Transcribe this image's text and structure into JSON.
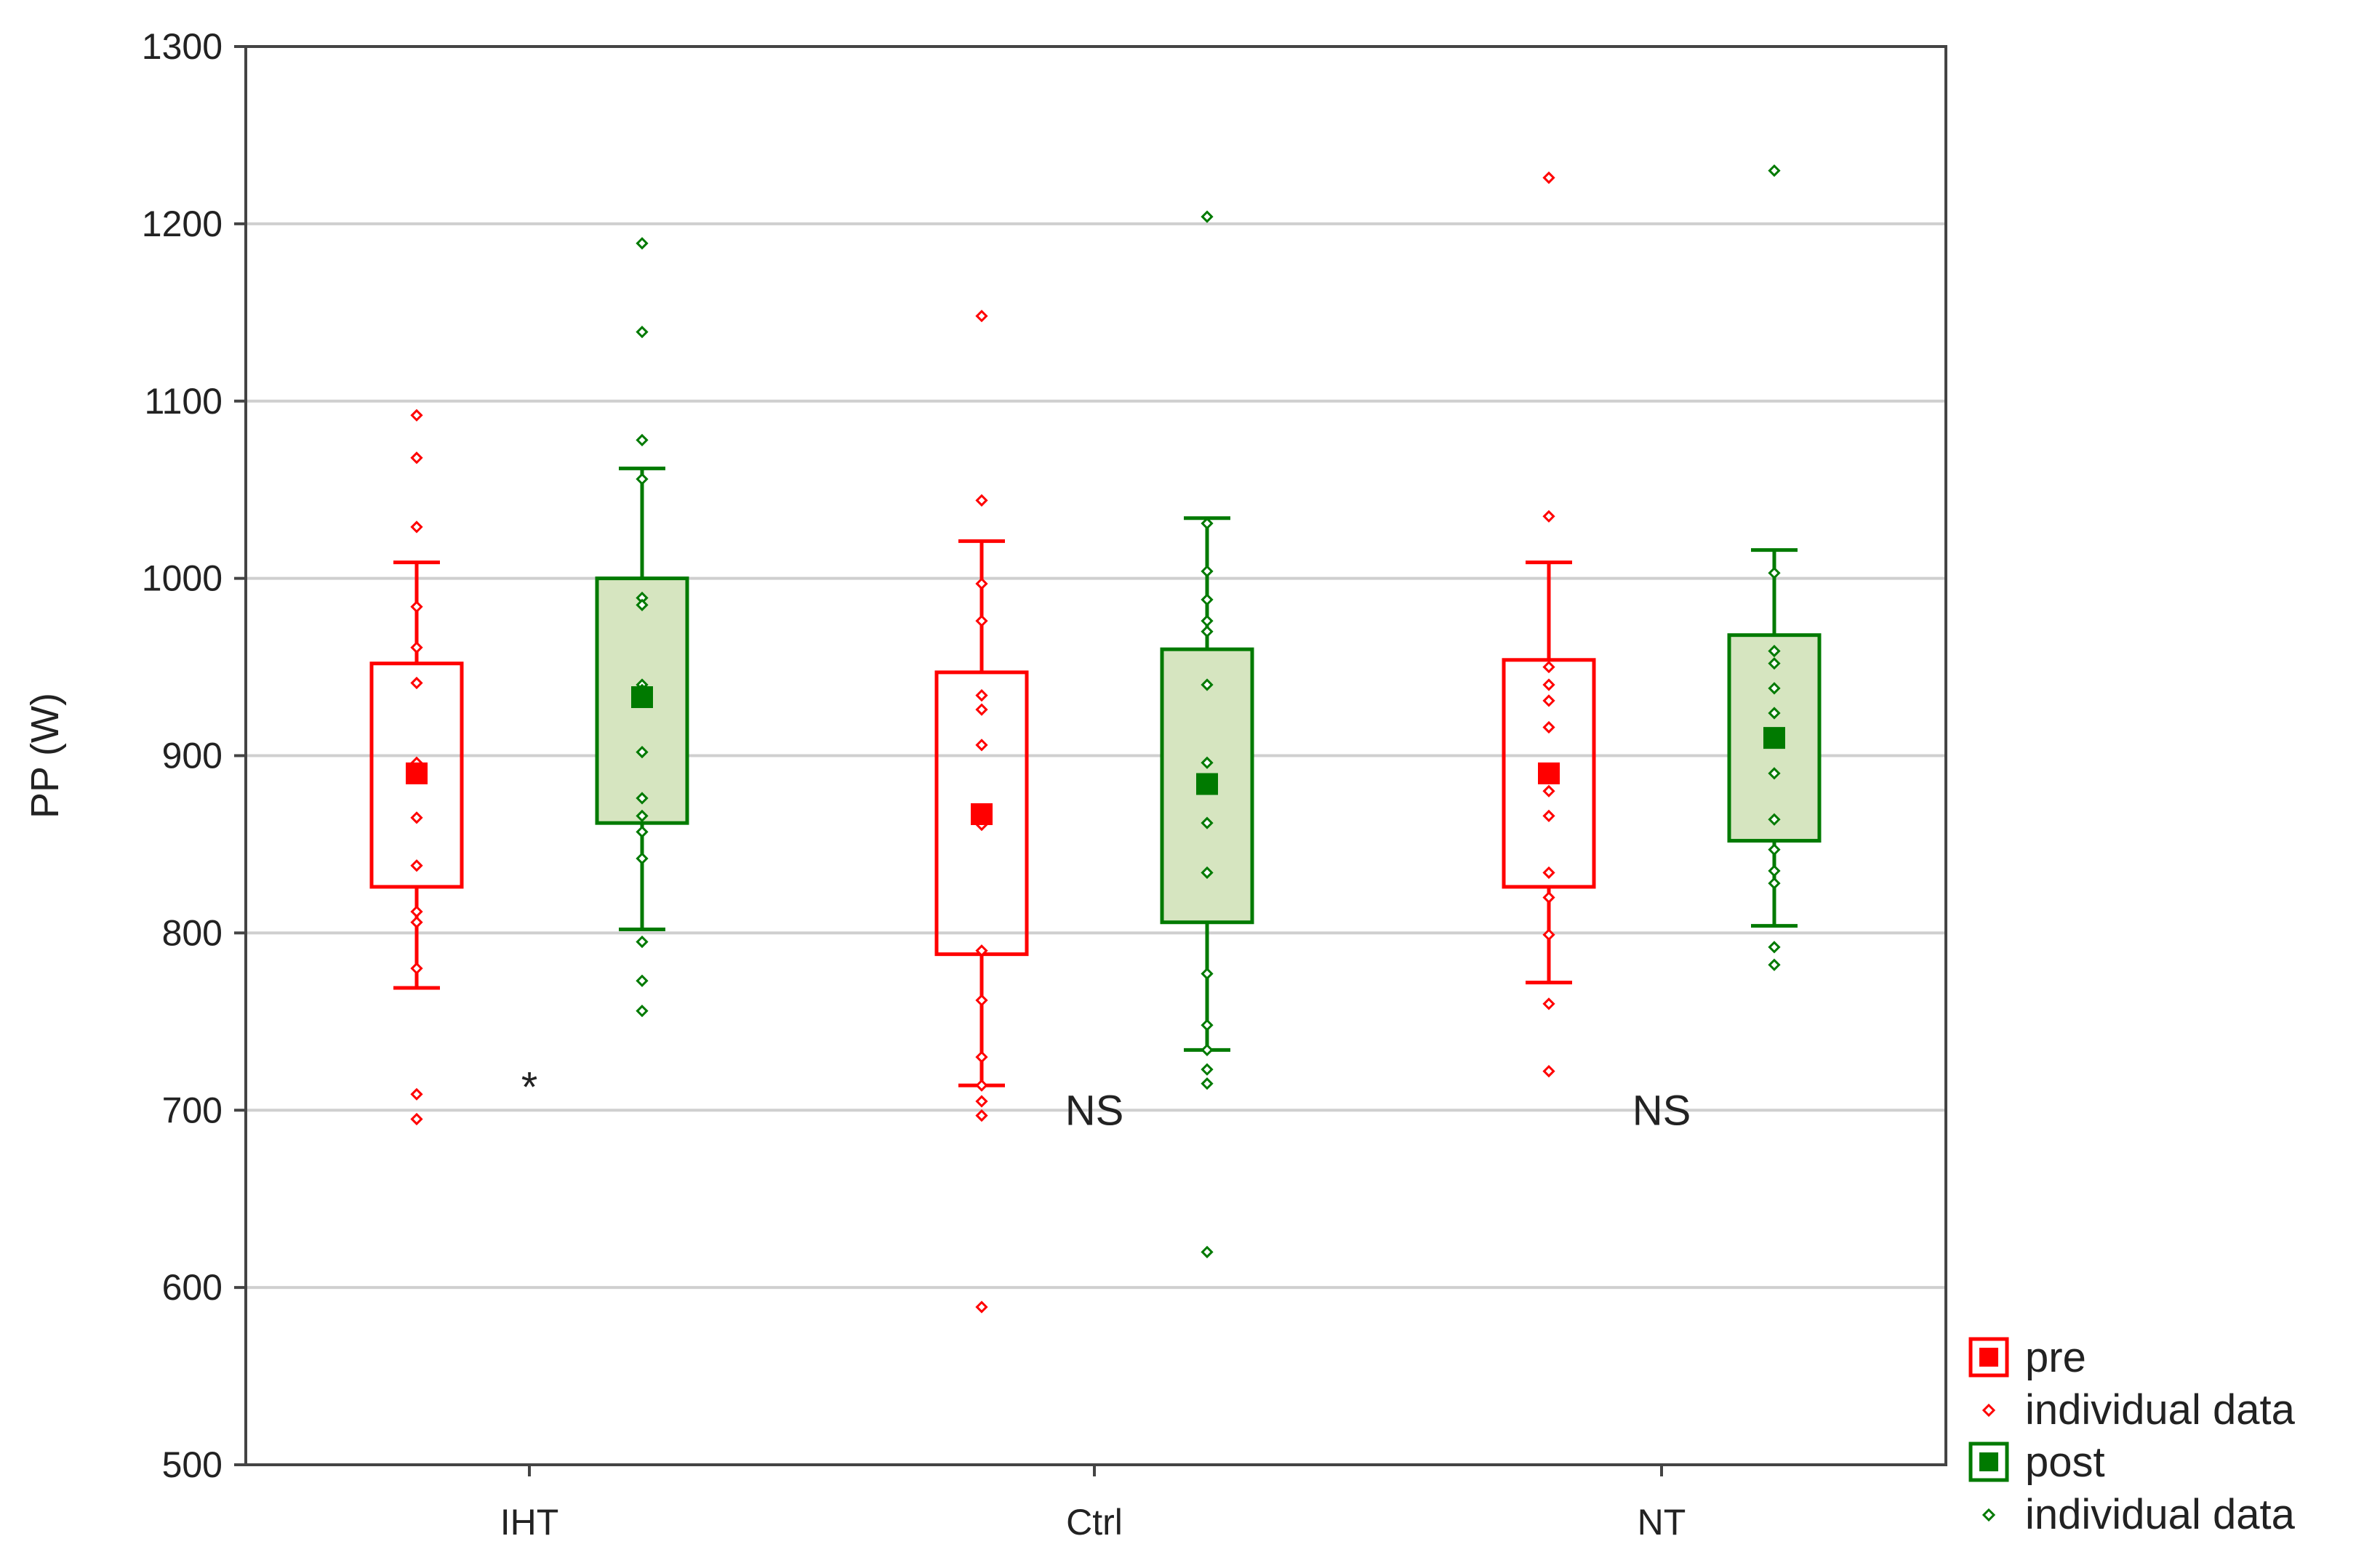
{
  "chart_data": {
    "type": "box",
    "title": "",
    "xlabel": "",
    "ylabel": "PP (W)",
    "ylim": [
      500,
      1300
    ],
    "yticks": [
      500,
      600,
      700,
      800,
      900,
      1000,
      1100,
      1200,
      1300
    ],
    "grid": true,
    "categories": [
      "IHT",
      "Ctrl",
      "NT"
    ],
    "series": [
      {
        "name": "pre",
        "color": "#ff0000",
        "box_fill": "none",
        "groups": [
          {
            "category": "IHT",
            "mean": 890,
            "q1": 826,
            "q3": 952,
            "whisker_low": 769,
            "whisker_high": 1009,
            "points": [
              1092,
              1068,
              1029,
              984,
              961,
              941,
              896,
              865,
              838,
              812,
              806,
              780,
              709,
              695
            ]
          },
          {
            "category": "Ctrl",
            "mean": 867,
            "q1": 788,
            "q3": 947,
            "whisker_low": 714,
            "whisker_high": 1021,
            "points": [
              1148,
              1044,
              997,
              976,
              934,
              926,
              906,
              861,
              790,
              762,
              730,
              714,
              705,
              697,
              589
            ]
          },
          {
            "category": "NT",
            "mean": 890,
            "q1": 826,
            "q3": 954,
            "whisker_low": 772,
            "whisker_high": 1009,
            "points": [
              1226,
              1035,
              950,
              940,
              931,
              916,
              880,
              866,
              834,
              820,
              799,
              760,
              722
            ]
          }
        ]
      },
      {
        "name": "post",
        "color": "#007a00",
        "box_fill": "#d6e5c0",
        "groups": [
          {
            "category": "IHT",
            "mean": 933,
            "q1": 862,
            "q3": 1000,
            "whisker_low": 802,
            "whisker_high": 1062,
            "points": [
              1189,
              1139,
              1078,
              1056,
              989,
              985,
              940,
              937,
              902,
              876,
              866,
              857,
              842,
              795,
              773,
              756
            ]
          },
          {
            "category": "Ctrl",
            "mean": 884,
            "q1": 806,
            "q3": 960,
            "whisker_low": 734,
            "whisker_high": 1034,
            "points": [
              1204,
              1031,
              1004,
              988,
              976,
              970,
              940,
              896,
              862,
              834,
              777,
              748,
              734,
              723,
              715,
              620
            ]
          },
          {
            "category": "NT",
            "mean": 910,
            "q1": 852,
            "q3": 968,
            "whisker_low": 804,
            "whisker_high": 1016,
            "points": [
              1230,
              1003,
              959,
              952,
              938,
              924,
              890,
              864,
              847,
              835,
              828,
              792,
              782
            ]
          }
        ]
      }
    ],
    "annotations": [
      {
        "category": "IHT",
        "text": "*",
        "y": 713
      },
      {
        "category": "Ctrl",
        "text": "NS",
        "y": 700
      },
      {
        "category": "NT",
        "text": "NS",
        "y": 700
      }
    ],
    "legend": {
      "position": "bottom-right",
      "entries": [
        {
          "label": "pre",
          "symbol": "filled-square",
          "color": "#ff0000"
        },
        {
          "label": "individual data",
          "symbol": "small-diamond",
          "color": "#ff0000"
        },
        {
          "label": "post",
          "symbol": "filled-square",
          "color": "#007a00"
        },
        {
          "label": "individual data",
          "symbol": "small-diamond",
          "color": "#007a00"
        }
      ]
    }
  }
}
